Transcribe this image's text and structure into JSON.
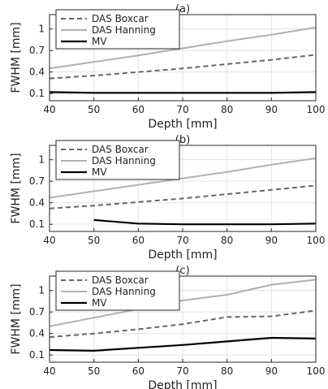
{
  "chart_data": [
    {
      "type": "line",
      "title": "(a)",
      "xlabel": "Depth [mm]",
      "ylabel": "FWHM [mm]",
      "xlim": [
        40,
        100
      ],
      "ylim": [
        0,
        1.2
      ],
      "xticks": [
        40,
        50,
        60,
        70,
        80,
        90,
        100
      ],
      "xtick_labels": [
        "40",
        "50",
        "60",
        "70",
        "80",
        "90",
        "100"
      ],
      "yticks": [
        0.1,
        0.4,
        0.7,
        1
      ],
      "ytick_labels": [
        "0.1",
        "0.4",
        "0.7",
        "1"
      ],
      "grid": true,
      "legend_position": "top-left",
      "series": [
        {
          "name": "DAS Boxcar",
          "style": "dashed",
          "color": "#666666",
          "x": [
            40,
            50,
            60,
            70,
            80,
            90,
            100
          ],
          "y": [
            0.31,
            0.35,
            0.4,
            0.45,
            0.51,
            0.57,
            0.64
          ]
        },
        {
          "name": "DAS Hanning",
          "style": "solid",
          "color": "#b0b0b0",
          "x": [
            40,
            50,
            60,
            70,
            80,
            90,
            100
          ],
          "y": [
            0.45,
            0.54,
            0.63,
            0.73,
            0.83,
            0.92,
            1.02
          ]
        },
        {
          "name": "MV",
          "style": "solid",
          "color": "#000000",
          "x": [
            40,
            50,
            60,
            70,
            80,
            90,
            100
          ],
          "y": [
            0.12,
            0.11,
            0.11,
            0.11,
            0.11,
            0.11,
            0.12
          ]
        }
      ]
    },
    {
      "type": "line",
      "title": "(b)",
      "xlabel": "Depth [mm]",
      "ylabel": "FWHM [mm]",
      "xlim": [
        40,
        100
      ],
      "ylim": [
        0,
        1.2
      ],
      "xticks": [
        40,
        50,
        60,
        70,
        80,
        90,
        100
      ],
      "xtick_labels": [
        "40",
        "50",
        "60",
        "70",
        "80",
        "90",
        "100"
      ],
      "yticks": [
        0.1,
        0.4,
        0.7,
        1
      ],
      "ytick_labels": [
        "0.1",
        "0.4",
        "0.7",
        "1"
      ],
      "grid": true,
      "legend_position": "top-left",
      "series": [
        {
          "name": "DAS Boxcar",
          "style": "dashed",
          "color": "#666666",
          "x": [
            40,
            50,
            60,
            70,
            80,
            90,
            100
          ],
          "y": [
            0.32,
            0.36,
            0.41,
            0.46,
            0.52,
            0.58,
            0.64
          ]
        },
        {
          "name": "DAS Hanning",
          "style": "solid",
          "color": "#b0b0b0",
          "x": [
            40,
            50,
            60,
            70,
            80,
            90,
            100
          ],
          "y": [
            0.47,
            0.56,
            0.65,
            0.74,
            0.83,
            0.93,
            1.02
          ]
        },
        {
          "name": "MV",
          "style": "solid",
          "color": "#000000",
          "x": [
            50,
            60,
            70,
            80,
            90,
            100
          ],
          "y": [
            0.16,
            0.11,
            0.1,
            0.1,
            0.1,
            0.11
          ]
        }
      ]
    },
    {
      "type": "line",
      "title": "(c)",
      "xlabel": "Depth [mm]",
      "ylabel": "FWHM [mm]",
      "xlim": [
        40,
        100
      ],
      "ylim": [
        0,
        1.2
      ],
      "xticks": [
        40,
        50,
        60,
        70,
        80,
        90,
        100
      ],
      "xtick_labels": [
        "40",
        "50",
        "60",
        "70",
        "80",
        "90",
        "100"
      ],
      "yticks": [
        0.1,
        0.4,
        0.7,
        1
      ],
      "ytick_labels": [
        "0.1",
        "0.4",
        "0.7",
        "1"
      ],
      "grid": true,
      "legend_position": "top-left",
      "series": [
        {
          "name": "DAS Boxcar",
          "style": "dashed",
          "color": "#666666",
          "x": [
            40,
            50,
            60,
            70,
            80,
            90,
            100
          ],
          "y": [
            0.35,
            0.4,
            0.46,
            0.53,
            0.63,
            0.64,
            0.72
          ]
        },
        {
          "name": "DAS Hanning",
          "style": "solid",
          "color": "#b0b0b0",
          "x": [
            40,
            50,
            60,
            70,
            80,
            90,
            100
          ],
          "y": [
            0.5,
            0.62,
            0.74,
            0.86,
            0.94,
            1.08,
            1.15
          ]
        },
        {
          "name": "MV",
          "style": "solid",
          "color": "#000000",
          "x": [
            40,
            50,
            60,
            70,
            80,
            90,
            100
          ],
          "y": [
            0.17,
            0.16,
            0.2,
            0.24,
            0.29,
            0.34,
            0.33
          ]
        }
      ]
    }
  ]
}
